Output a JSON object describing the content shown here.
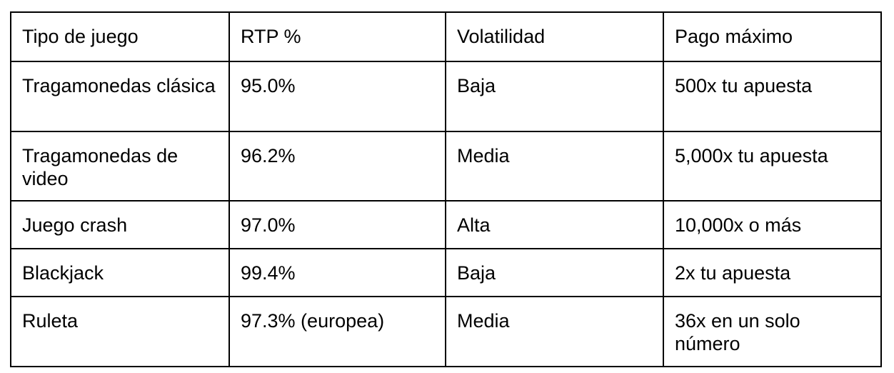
{
  "table": {
    "headers": [
      "Tipo de juego",
      "RTP %",
      "Volatilidad",
      "Pago máximo"
    ],
    "rows": [
      [
        "Tragamonedas clásica",
        "95.0%",
        "Baja",
        "500x tu apuesta"
      ],
      [
        "Tragamonedas de video",
        "96.2%",
        "Media",
        "5,000x tu apuesta"
      ],
      [
        "Juego crash",
        "97.0%",
        "Alta",
        "10,000x o más"
      ],
      [
        "Blackjack",
        "99.4%",
        "Baja",
        "2x tu apuesta"
      ],
      [
        "Ruleta",
        "97.3% (europea)",
        "Media",
        "36x en un solo número"
      ]
    ]
  }
}
